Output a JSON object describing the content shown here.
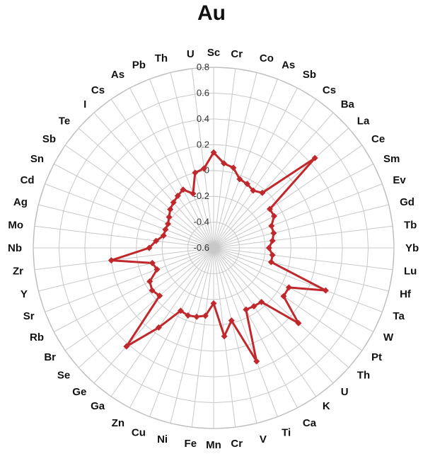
{
  "chart_data": {
    "type": "radar",
    "title": "Au",
    "categories": [
      "Sc",
      "Cr",
      "Co",
      "As",
      "Sb",
      "Cs",
      "Ba",
      "La",
      "Ce",
      "Sm",
      "Ev",
      "Gd",
      "Tb",
      "Yb",
      "Lu",
      "Hf",
      "Ta",
      "W",
      "Pt",
      "Th",
      "U",
      "K",
      "Ca",
      "Ti",
      "V",
      "Cr",
      "Mn",
      "Fe",
      "Ni",
      "Cu",
      "Zn",
      "Ga",
      "Ge",
      "Se",
      "Br",
      "Rb",
      "Sr",
      "Y",
      "Zr",
      "Nb",
      "Mo",
      "Ag",
      "Cd",
      "Sn",
      "Sb",
      "Te",
      "I",
      "Cs",
      "As",
      "Pb",
      "Th",
      "U"
    ],
    "rlim": [
      -0.6,
      0.8
    ],
    "ticks": [
      "-0.6",
      "-0.4",
      "-0.2",
      "0",
      "0.2",
      "0.4",
      "0.6",
      "0.8"
    ],
    "tick_values": [
      -0.6,
      -0.4,
      -0.2,
      0,
      0.2,
      0.4,
      0.6,
      0.8
    ],
    "series": [
      {
        "values": [
          0.14,
          0.06,
          0.04,
          -0.03,
          -0.04,
          -0.06,
          -0.03,
          0.45,
          -0.07,
          -0.07,
          -0.12,
          -0.12,
          -0.14,
          -0.17,
          -0.14,
          -0.14,
          0.33,
          0.06,
          0.06,
          0.28,
          -0.04,
          -0.05,
          -0.06,
          0.34,
          -0.02,
          0.09,
          -0.17,
          -0.07,
          -0.05,
          -0.04,
          -0.05,
          0.15,
          0.42,
          -0.04,
          -0.02,
          -0.04,
          -0.13,
          -0.11,
          0.2,
          -0.1,
          -0.15,
          -0.2,
          -0.2,
          -0.2,
          -0.18,
          -0.15,
          -0.13,
          -0.11,
          -0.09,
          -0.15,
          0.0,
          0.02
        ],
        "color": "#c0282b"
      }
    ],
    "grid": true
  }
}
